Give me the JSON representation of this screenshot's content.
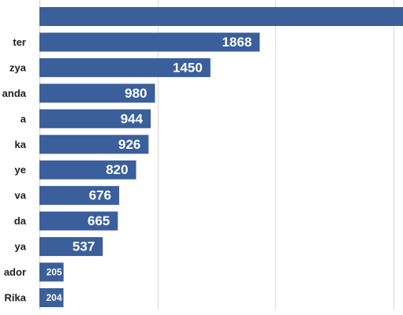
{
  "chart_data": {
    "type": "bar",
    "orientation": "horizontal",
    "categories": [
      "",
      "ter",
      "zya",
      "anda",
      "a",
      "ka",
      "ye",
      "va",
      "da",
      "ya",
      "ador",
      "Rika"
    ],
    "values": [
      null,
      1868,
      1450,
      980,
      944,
      926,
      820,
      676,
      665,
      537,
      205,
      204
    ],
    "data_labels": [
      "",
      "1868",
      "1450",
      "980",
      "944",
      "926",
      "820",
      "676",
      "665",
      "537",
      "205",
      "204"
    ],
    "partial_first_bar_exceeds": 5000,
    "xlim": [
      0,
      5000
    ],
    "x_gridlines": [
      0,
      1000,
      2000,
      3000,
      4000,
      5000
    ],
    "grid": true,
    "bar_color": "#3a5f9b",
    "grid_color": "#d9d9d9",
    "label_color": "#ffffff"
  }
}
